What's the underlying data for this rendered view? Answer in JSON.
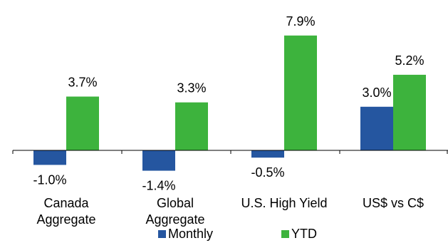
{
  "chart_data": {
    "type": "bar",
    "categories": [
      [
        "Canada",
        "Aggregate"
      ],
      [
        "Global",
        "Aggregate"
      ],
      [
        "U.S. High Yield"
      ],
      [
        "US$ vs C$"
      ]
    ],
    "series": [
      {
        "name": "Monthly",
        "color": "#2556A0",
        "values": [
          -1.0,
          -1.4,
          -0.5,
          3.0
        ],
        "labels": [
          "-1.0%",
          "-1.4%",
          "-0.5%",
          "3.0%"
        ]
      },
      {
        "name": "YTD",
        "color": "#3DB33D",
        "values": [
          3.7,
          3.3,
          7.9,
          5.2
        ],
        "labels": [
          "3.7%",
          "3.3%",
          "7.9%",
          "5.2%"
        ]
      }
    ],
    "ylim": [
      -1.4,
      7.9
    ],
    "grid": false,
    "legend_position": "bottom"
  }
}
